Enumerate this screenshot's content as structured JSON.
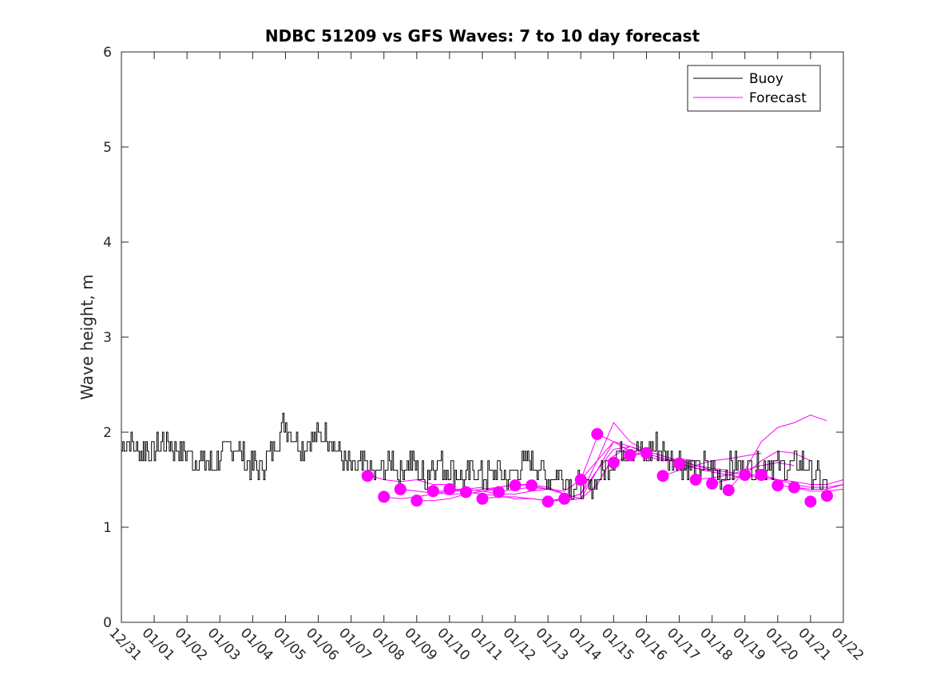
{
  "chart_data": {
    "type": "line",
    "title": "NDBC 51209 vs GFS Waves: 7 to 10 day forecast",
    "xlabel": "",
    "ylabel": "Wave height, m",
    "x_units": "days since 12/31",
    "xlim": [
      0,
      22
    ],
    "ylim": [
      0,
      6
    ],
    "yticks": [
      0,
      1,
      2,
      3,
      4,
      5,
      6
    ],
    "xtick_labels": [
      "12/31",
      "01/01",
      "01/02",
      "01/03",
      "01/04",
      "01/05",
      "01/06",
      "01/07",
      "01/08",
      "01/09",
      "01/10",
      "01/11",
      "01/12",
      "01/13",
      "01/14",
      "01/15",
      "01/16",
      "01/17",
      "01/18",
      "01/19",
      "01/20",
      "01/21",
      "01/22"
    ],
    "legend": {
      "position": "top-right",
      "entries": [
        {
          "label": "Buoy",
          "color": "#000000"
        },
        {
          "label": "Forecast",
          "color": "#ff00ff"
        }
      ]
    },
    "buoy": {
      "name": "Buoy",
      "color": "#000000",
      "x": [
        0,
        0.25,
        0.5,
        0.75,
        1,
        1.25,
        1.5,
        1.75,
        2,
        2.25,
        2.5,
        2.75,
        3,
        3.25,
        3.5,
        3.75,
        4,
        4.25,
        4.5,
        4.75,
        5,
        5.25,
        5.5,
        5.75,
        6,
        6.25,
        6.5,
        6.75,
        7,
        7.25,
        7.5,
        7.75,
        8,
        8.25,
        8.5,
        8.75,
        9,
        9.25,
        9.5,
        9.75,
        10,
        10.25,
        10.5,
        10.75,
        11,
        11.25,
        11.5,
        11.75,
        12,
        12.25,
        12.5,
        12.75,
        13,
        13.25,
        13.5,
        13.75,
        14,
        14.25,
        14.5,
        14.75,
        15,
        15.25,
        15.5,
        15.75,
        16,
        16.25,
        16.5,
        16.75,
        17,
        17.25,
        17.5,
        17.75,
        18,
        18.25,
        18.5,
        18.75,
        19,
        19.25,
        19.5,
        19.75,
        20,
        20.25,
        20.5,
        20.75,
        21,
        21.25,
        21.5
      ],
      "values": [
        1.85,
        1.9,
        1.8,
        1.85,
        1.8,
        1.9,
        1.85,
        1.8,
        1.8,
        1.7,
        1.7,
        1.65,
        1.75,
        1.8,
        1.85,
        1.7,
        1.65,
        1.6,
        1.75,
        1.95,
        2.1,
        1.95,
        1.85,
        1.9,
        1.95,
        2.0,
        1.85,
        1.7,
        1.6,
        1.65,
        1.6,
        1.55,
        1.6,
        1.7,
        1.55,
        1.7,
        1.6,
        1.5,
        1.7,
        1.65,
        1.6,
        1.55,
        1.5,
        1.6,
        1.5,
        1.55,
        1.6,
        1.5,
        1.6,
        1.65,
        1.7,
        1.6,
        1.5,
        1.55,
        1.5,
        1.45,
        1.4,
        1.4,
        1.5,
        1.6,
        1.75,
        1.8,
        1.85,
        1.8,
        1.75,
        1.85,
        1.8,
        1.75,
        1.7,
        1.65,
        1.6,
        1.65,
        1.6,
        1.55,
        1.6,
        1.65,
        1.6,
        1.65,
        1.6,
        1.7,
        1.65,
        1.6,
        1.65,
        1.7,
        1.6,
        1.5,
        1.4
      ]
    },
    "forecast": {
      "name": "Forecast",
      "color": "#ff00ff",
      "series": [
        {
          "x": [
            7.5,
            8,
            8.5,
            9,
            9.5,
            10
          ],
          "values": [
            1.55,
            1.5,
            1.48,
            1.5,
            1.45,
            1.45
          ]
        },
        {
          "x": [
            8,
            8.5,
            9,
            9.5,
            10,
            10.5,
            11
          ],
          "values": [
            1.32,
            1.3,
            1.32,
            1.35,
            1.38,
            1.4,
            1.42
          ]
        },
        {
          "x": [
            8.5,
            9,
            9.5,
            10,
            10.5,
            11,
            11.5
          ],
          "values": [
            1.4,
            1.38,
            1.36,
            1.35,
            1.35,
            1.38,
            1.4
          ]
        },
        {
          "x": [
            9,
            9.5,
            10,
            10.5,
            11,
            11.5,
            12
          ],
          "values": [
            1.28,
            1.28,
            1.3,
            1.35,
            1.38,
            1.42,
            1.45
          ]
        },
        {
          "x": [
            9.5,
            10,
            10.5,
            11,
            11.5,
            12,
            12.5
          ],
          "values": [
            1.38,
            1.38,
            1.38,
            1.4,
            1.42,
            1.45,
            1.45
          ]
        },
        {
          "x": [
            10,
            10.5,
            11,
            11.5,
            12,
            12.5,
            13
          ],
          "values": [
            1.4,
            1.4,
            1.38,
            1.35,
            1.35,
            1.38,
            1.4
          ]
        },
        {
          "x": [
            10.5,
            11,
            11.5,
            12,
            12.5,
            13,
            13.5
          ],
          "values": [
            1.37,
            1.35,
            1.33,
            1.3,
            1.3,
            1.28,
            1.3
          ]
        },
        {
          "x": [
            11,
            11.5,
            12,
            12.5,
            13,
            13.5,
            14
          ],
          "values": [
            1.3,
            1.32,
            1.32,
            1.3,
            1.28,
            1.28,
            1.3
          ]
        },
        {
          "x": [
            11.5,
            12,
            12.5,
            13,
            13.5,
            14,
            14.5
          ],
          "values": [
            1.37,
            1.4,
            1.42,
            1.4,
            1.38,
            1.5,
            1.95
          ]
        },
        {
          "x": [
            12,
            12.5,
            13,
            13.5,
            14,
            14.5,
            15
          ],
          "values": [
            1.44,
            1.45,
            1.42,
            1.35,
            1.3,
            1.6,
            1.9
          ]
        },
        {
          "x": [
            12.5,
            13,
            13.5,
            14,
            14.5,
            15,
            15.5
          ],
          "values": [
            1.44,
            1.4,
            1.35,
            1.3,
            1.45,
            1.75,
            1.85
          ]
        },
        {
          "x": [
            13,
            13.5,
            14,
            14.5,
            15,
            15.5,
            16
          ],
          "values": [
            1.27,
            1.3,
            1.35,
            1.6,
            1.82,
            1.85,
            1.78
          ]
        },
        {
          "x": [
            13.5,
            14,
            14.5,
            15,
            15.5,
            16,
            16.5
          ],
          "values": [
            1.3,
            1.35,
            1.7,
            2.1,
            1.9,
            1.8,
            1.75
          ]
        },
        {
          "x": [
            14,
            14.5,
            15,
            15.5,
            16,
            16.5,
            17
          ],
          "values": [
            1.5,
            1.7,
            1.9,
            1.85,
            1.8,
            1.75,
            1.7
          ]
        },
        {
          "x": [
            14.5,
            15,
            15.5,
            16,
            16.5,
            17,
            17.5
          ],
          "values": [
            1.98,
            1.9,
            1.8,
            1.75,
            1.7,
            1.72,
            1.7
          ]
        },
        {
          "x": [
            15,
            15.5,
            16,
            16.5,
            17,
            17.5,
            18
          ],
          "values": [
            1.68,
            1.75,
            1.78,
            1.72,
            1.7,
            1.65,
            1.6
          ]
        },
        {
          "x": [
            15.5,
            16,
            16.5,
            17,
            17.5,
            18,
            18.5
          ],
          "values": [
            1.76,
            1.8,
            1.75,
            1.7,
            1.65,
            1.62,
            1.6
          ]
        },
        {
          "x": [
            16,
            16.5,
            17,
            17.5,
            18,
            18.5,
            19
          ],
          "values": [
            1.78,
            1.72,
            1.68,
            1.62,
            1.58,
            1.55,
            1.52
          ]
        },
        {
          "x": [
            16.5,
            17,
            17.5,
            18,
            18.5,
            19,
            19.5
          ],
          "values": [
            1.54,
            1.6,
            1.65,
            1.7,
            1.72,
            1.75,
            1.78
          ]
        },
        {
          "x": [
            17,
            17.5,
            18,
            18.5,
            19,
            19.5,
            20
          ],
          "values": [
            1.67,
            1.62,
            1.6,
            1.58,
            1.55,
            1.55,
            1.5
          ]
        },
        {
          "x": [
            17.5,
            18,
            18.5,
            19,
            19.5,
            20,
            20.5
          ],
          "values": [
            1.5,
            1.52,
            1.55,
            1.6,
            1.65,
            1.68,
            1.65
          ]
        },
        {
          "x": [
            18,
            18.5,
            19,
            19.5,
            20,
            20.5,
            21
          ],
          "values": [
            1.46,
            1.5,
            1.55,
            1.7,
            1.8,
            1.78,
            1.7
          ]
        },
        {
          "x": [
            18.5,
            19,
            19.5,
            20,
            20.5,
            21,
            21.5
          ],
          "values": [
            1.39,
            1.6,
            1.9,
            2.05,
            2.1,
            2.18,
            2.12
          ]
        },
        {
          "x": [
            19,
            19.5,
            20,
            20.5,
            21,
            21.5,
            22
          ],
          "values": [
            1.55,
            1.52,
            1.5,
            1.48,
            1.45,
            1.45,
            1.5
          ]
        },
        {
          "x": [
            19.5,
            20,
            20.5,
            21,
            21.5,
            22
          ],
          "values": [
            1.55,
            1.5,
            1.45,
            1.42,
            1.42,
            1.45
          ]
        },
        {
          "x": [
            20,
            20.5,
            21,
            21.5,
            22
          ],
          "values": [
            1.44,
            1.42,
            1.4,
            1.4,
            1.45
          ]
        },
        {
          "x": [
            20.5,
            21,
            21.5,
            22
          ],
          "values": [
            1.42,
            1.38,
            1.38,
            1.4
          ]
        }
      ],
      "markers": {
        "x": [
          7.5,
          8,
          8.5,
          9,
          9.5,
          10,
          10.5,
          11,
          11.5,
          12,
          12.5,
          13,
          13.5,
          14,
          14.5,
          15,
          15.5,
          16,
          16.5,
          17,
          17.5,
          18,
          18.5,
          19,
          19.5,
          20,
          20.5,
          21,
          21.5
        ],
        "values": [
          1.54,
          1.32,
          1.4,
          1.28,
          1.38,
          1.4,
          1.37,
          1.3,
          1.37,
          1.44,
          1.44,
          1.27,
          1.3,
          1.5,
          1.98,
          1.68,
          1.76,
          1.78,
          1.54,
          1.67,
          1.5,
          1.46,
          1.39,
          1.55,
          1.55,
          1.44,
          1.42,
          1.27,
          1.33
        ]
      }
    }
  }
}
